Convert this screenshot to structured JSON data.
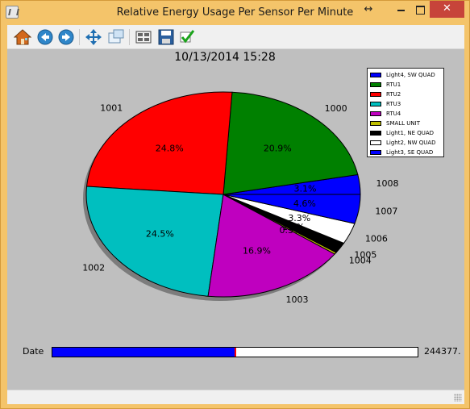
{
  "window": {
    "title": "Relative Energy Usage Per Sensor Per Minute",
    "accent_color": "#f4c46a",
    "close_color": "#c7443a"
  },
  "toolbar": {
    "tools": [
      {
        "name": "home-icon",
        "label": "Home"
      },
      {
        "name": "back-icon",
        "label": "Back"
      },
      {
        "name": "forward-icon",
        "label": "Forward"
      },
      {
        "name": "pan-icon",
        "label": "Pan"
      },
      {
        "name": "zoom-icon",
        "label": "Zoom"
      },
      {
        "name": "subplot-config-icon",
        "label": "Configure subplots"
      },
      {
        "name": "save-icon",
        "label": "Save"
      },
      {
        "name": "checkmark-icon",
        "label": "Edit parameters"
      }
    ]
  },
  "chart_data": {
    "type": "pie",
    "title": "10/13/2014 15:28",
    "shadow": true,
    "start_angle_deg": 0,
    "direction": "counterclockwise",
    "legend_position": "top-right",
    "slices": [
      {
        "label": "1008",
        "legend": "Light3, SE QUAD",
        "value": 3.1,
        "pct_label": "3.1%",
        "color": "#0000ff"
      },
      {
        "label": "1000",
        "legend": "RTU1",
        "value": 20.9,
        "pct_label": "20.9%",
        "color": "#008000"
      },
      {
        "label": "1001",
        "legend": "RTU2",
        "value": 24.8,
        "pct_label": "24.8%",
        "color": "#ff0000"
      },
      {
        "label": "1002",
        "legend": "RTU3",
        "value": 24.5,
        "pct_label": "24.5%",
        "color": "#00bfbf"
      },
      {
        "label": "1003",
        "legend": "RTU4",
        "value": 16.9,
        "pct_label": "16.9%",
        "color": "#bf00bf"
      },
      {
        "label": "1004",
        "legend": "SMALL UNIT",
        "value": 0.3,
        "pct_label": "0.3%",
        "color": "#bfbf00"
      },
      {
        "label": "1005",
        "legend": "Light1, NE QUAD",
        "value": 1.7,
        "pct_label": "1.7%",
        "color": "#000000"
      },
      {
        "label": "1006",
        "legend": "Light2, NW QUAD",
        "value": 3.3,
        "pct_label": "3.3%",
        "color": "#ffffff"
      },
      {
        "label": "1007",
        "legend": "Light4, SW QUAD",
        "value": 4.6,
        "pct_label": "4.6%",
        "color": "#0000ff"
      }
    ],
    "legend_order": [
      {
        "text": "Light4, SW QUAD",
        "color": "#0000ff"
      },
      {
        "text": "RTU1",
        "color": "#008000"
      },
      {
        "text": "RTU2",
        "color": "#ff0000"
      },
      {
        "text": "RTU3",
        "color": "#00bfbf"
      },
      {
        "text": "RTU4",
        "color": "#bf00bf"
      },
      {
        "text": "SMALL UNIT",
        "color": "#bfbf00"
      },
      {
        "text": "Light1, NE QUAD",
        "color": "#000000"
      },
      {
        "text": "Light2, NW QUAD",
        "color": "#ffffff"
      },
      {
        "text": "Light3, SE QUAD",
        "color": "#0000ff"
      }
    ]
  },
  "slider": {
    "label": "Date",
    "value_text": "244377.",
    "fraction": 0.5,
    "fill_color": "#0000ff",
    "handle_color": "#ff0000"
  }
}
